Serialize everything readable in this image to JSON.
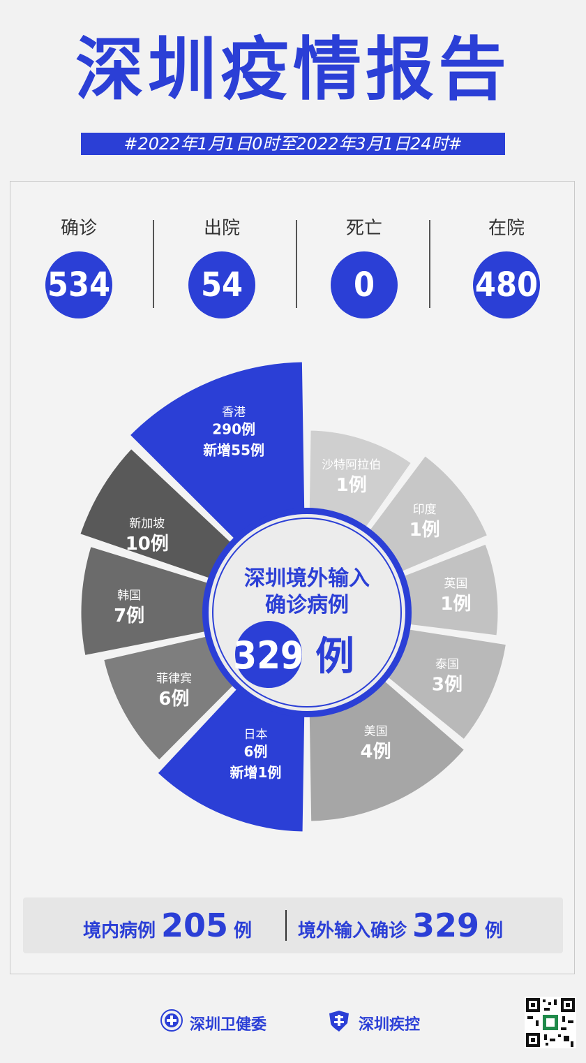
{
  "title": "深圳疫情报告",
  "date_range": "#2022年1月1日0时至2022年3月1日24时#",
  "stats": [
    {
      "label": "确诊",
      "value": "534"
    },
    {
      "label": "出院",
      "value": "54"
    },
    {
      "label": "死亡",
      "value": "0"
    },
    {
      "label": "在院",
      "value": "480"
    }
  ],
  "center": {
    "line1": "深圳境外输入",
    "line2": "确诊病例",
    "number": "329",
    "unit": "例"
  },
  "chart_data": {
    "type": "pie",
    "categories": [
      "香港",
      "沙特阿拉伯",
      "印度",
      "英国",
      "泰国",
      "美国",
      "日本",
      "菲律宾",
      "韩国",
      "新加坡"
    ],
    "values": [
      290,
      1,
      1,
      1,
      3,
      4,
      6,
      6,
      7,
      10
    ],
    "value_labels": [
      "290例",
      "1例",
      "1例",
      "1例",
      "3例",
      "4例",
      "6例",
      "6例",
      "7例",
      "10例"
    ],
    "annotations": [
      "新增55例",
      "",
      "",
      "",
      "",
      "",
      "新增1例",
      "",
      "",
      ""
    ],
    "highlight_color": "#2b3fd6",
    "colors": [
      "#2b3fd6",
      "#cfcfcf",
      "#c7c7c7",
      "#c2c2c2",
      "#b9b9b9",
      "#a6a6a6",
      "#2b3fd6",
      "#7e7e7e",
      "#6b6b6b",
      "#595959"
    ]
  },
  "bottom": {
    "domestic_label": "境内病例",
    "domestic_value": "205",
    "domestic_unit": "例",
    "import_label": "境外输入确诊",
    "import_value": "329",
    "import_unit": "例"
  },
  "footer": {
    "org1": "深圳卫健委",
    "org2": "深圳疾控"
  },
  "icons": [
    "health-commission-logo-icon",
    "cdc-shield-icon",
    "qr-code-icon"
  ]
}
